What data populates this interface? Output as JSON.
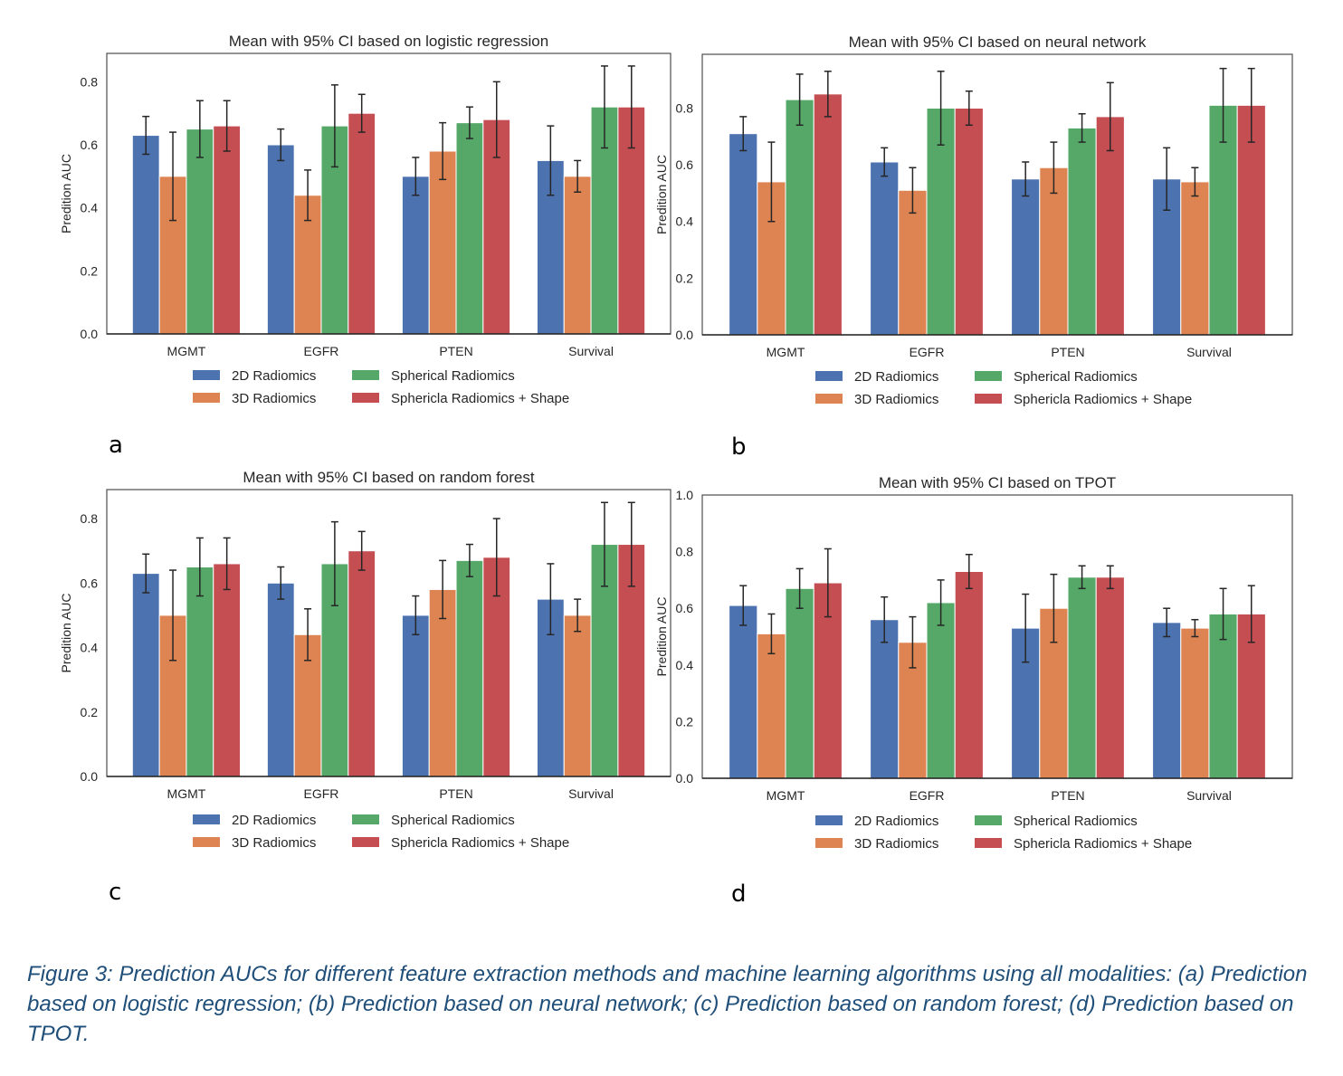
{
  "legend": {
    "entries": [
      "2D Radiomics",
      "3D Radiomics",
      "Spherical Radiomics",
      "Sphericla Radiomics + Shape"
    ],
    "colors": [
      "#4C72B0",
      "#DD8452",
      "#55A868",
      "#C44E52"
    ],
    "placement": "below-center"
  },
  "caption": "Figure 3: Prediction AUCs for different feature extraction methods and machine learning algorithms using all modalities: (a) Prediction based on logistic regression; (b) Prediction based on neural network; (c) Prediction based on random forest; (d) Prediction based on TPOT.",
  "chart_data": [
    {
      "panel": "a",
      "type": "bar",
      "title": "Mean with 95% CI based on logistic regression",
      "xlabel": "",
      "ylabel": "Predition AUC",
      "categories": [
        "MGMT",
        "EGFR",
        "PTEN",
        "Survival"
      ],
      "ylim": [
        0,
        0.89
      ],
      "yticks": [
        "0.0",
        "0.2",
        "0.4",
        "0.6",
        "0.8"
      ],
      "grid": false,
      "series": [
        {
          "name": "2D Radiomics",
          "values": [
            0.63,
            0.6,
            0.5,
            0.55
          ],
          "ci_low": [
            0.57,
            0.55,
            0.44,
            0.44
          ],
          "ci_high": [
            0.69,
            0.65,
            0.56,
            0.66
          ]
        },
        {
          "name": "3D Radiomics",
          "values": [
            0.5,
            0.44,
            0.58,
            0.5
          ],
          "ci_low": [
            0.36,
            0.36,
            0.49,
            0.45
          ],
          "ci_high": [
            0.64,
            0.52,
            0.67,
            0.55
          ]
        },
        {
          "name": "Spherical Radiomics",
          "values": [
            0.65,
            0.66,
            0.67,
            0.72
          ],
          "ci_low": [
            0.56,
            0.53,
            0.62,
            0.59
          ],
          "ci_high": [
            0.74,
            0.79,
            0.72,
            0.85
          ]
        },
        {
          "name": "Sphericla Radiomics + Shape",
          "values": [
            0.66,
            0.7,
            0.68,
            0.72
          ],
          "ci_low": [
            0.58,
            0.64,
            0.56,
            0.59
          ],
          "ci_high": [
            0.74,
            0.76,
            0.8,
            0.85
          ]
        }
      ]
    },
    {
      "panel": "b",
      "type": "bar",
      "title": "Mean with 95% CI based on neural network",
      "xlabel": "",
      "ylabel": "Predition AUC",
      "categories": [
        "MGMT",
        "EGFR",
        "PTEN",
        "Survival"
      ],
      "ylim": [
        0,
        0.99
      ],
      "yticks": [
        "0.0",
        "0.2",
        "0.4",
        "0.6",
        "0.8"
      ],
      "grid": false,
      "series": [
        {
          "name": "2D Radiomics",
          "values": [
            0.71,
            0.61,
            0.55,
            0.55
          ],
          "ci_low": [
            0.65,
            0.56,
            0.49,
            0.44
          ],
          "ci_high": [
            0.77,
            0.66,
            0.61,
            0.66
          ]
        },
        {
          "name": "3D Radiomics",
          "values": [
            0.54,
            0.51,
            0.59,
            0.54
          ],
          "ci_low": [
            0.4,
            0.43,
            0.5,
            0.49
          ],
          "ci_high": [
            0.68,
            0.59,
            0.68,
            0.59
          ]
        },
        {
          "name": "Spherical Radiomics",
          "values": [
            0.83,
            0.8,
            0.73,
            0.81
          ],
          "ci_low": [
            0.74,
            0.67,
            0.68,
            0.68
          ],
          "ci_high": [
            0.92,
            0.93,
            0.78,
            0.94
          ]
        },
        {
          "name": "Sphericla Radiomics + Shape",
          "values": [
            0.85,
            0.8,
            0.77,
            0.81
          ],
          "ci_low": [
            0.77,
            0.74,
            0.65,
            0.68
          ],
          "ci_high": [
            0.93,
            0.86,
            0.89,
            0.94
          ]
        }
      ]
    },
    {
      "panel": "c",
      "type": "bar",
      "title": "Mean with 95% CI based on random forest",
      "xlabel": "",
      "ylabel": "Predition AUC",
      "categories": [
        "MGMT",
        "EGFR",
        "PTEN",
        "Survival"
      ],
      "ylim": [
        0,
        0.89
      ],
      "yticks": [
        "0.0",
        "0.2",
        "0.4",
        "0.6",
        "0.8"
      ],
      "grid": false,
      "series": [
        {
          "name": "2D Radiomics",
          "values": [
            0.63,
            0.6,
            0.5,
            0.55
          ],
          "ci_low": [
            0.57,
            0.55,
            0.44,
            0.44
          ],
          "ci_high": [
            0.69,
            0.65,
            0.56,
            0.66
          ]
        },
        {
          "name": "3D Radiomics",
          "values": [
            0.5,
            0.44,
            0.58,
            0.5
          ],
          "ci_low": [
            0.36,
            0.36,
            0.49,
            0.45
          ],
          "ci_high": [
            0.64,
            0.52,
            0.67,
            0.55
          ]
        },
        {
          "name": "Spherical Radiomics",
          "values": [
            0.65,
            0.66,
            0.67,
            0.72
          ],
          "ci_low": [
            0.56,
            0.53,
            0.62,
            0.59
          ],
          "ci_high": [
            0.74,
            0.79,
            0.72,
            0.85
          ]
        },
        {
          "name": "Sphericla Radiomics + Shape",
          "values": [
            0.66,
            0.7,
            0.68,
            0.72
          ],
          "ci_low": [
            0.58,
            0.64,
            0.56,
            0.59
          ],
          "ci_high": [
            0.74,
            0.76,
            0.8,
            0.85
          ]
        }
      ]
    },
    {
      "panel": "d",
      "type": "bar",
      "title": "Mean with 95% CI based on TPOT",
      "xlabel": "",
      "ylabel": "Predition AUC",
      "categories": [
        "MGMT",
        "EGFR",
        "PTEN",
        "Survival"
      ],
      "ylim": [
        0,
        1.0
      ],
      "yticks": [
        "0.0",
        "0.2",
        "0.4",
        "0.6",
        "0.8",
        "1.0"
      ],
      "grid": false,
      "series": [
        {
          "name": "2D Radiomics",
          "values": [
            0.61,
            0.56,
            0.53,
            0.55
          ],
          "ci_low": [
            0.54,
            0.48,
            0.41,
            0.5
          ],
          "ci_high": [
            0.68,
            0.64,
            0.65,
            0.6
          ]
        },
        {
          "name": "3D Radiomics",
          "values": [
            0.51,
            0.48,
            0.6,
            0.53
          ],
          "ci_low": [
            0.44,
            0.39,
            0.48,
            0.5
          ],
          "ci_high": [
            0.58,
            0.57,
            0.72,
            0.56
          ]
        },
        {
          "name": "Spherical Radiomics",
          "values": [
            0.67,
            0.62,
            0.71,
            0.58
          ],
          "ci_low": [
            0.6,
            0.54,
            0.67,
            0.49
          ],
          "ci_high": [
            0.74,
            0.7,
            0.75,
            0.67
          ]
        },
        {
          "name": "Sphericla Radiomics + Shape",
          "values": [
            0.69,
            0.73,
            0.71,
            0.58
          ],
          "ci_low": [
            0.57,
            0.67,
            0.67,
            0.48
          ],
          "ci_high": [
            0.81,
            0.79,
            0.75,
            0.68
          ]
        }
      ]
    }
  ]
}
